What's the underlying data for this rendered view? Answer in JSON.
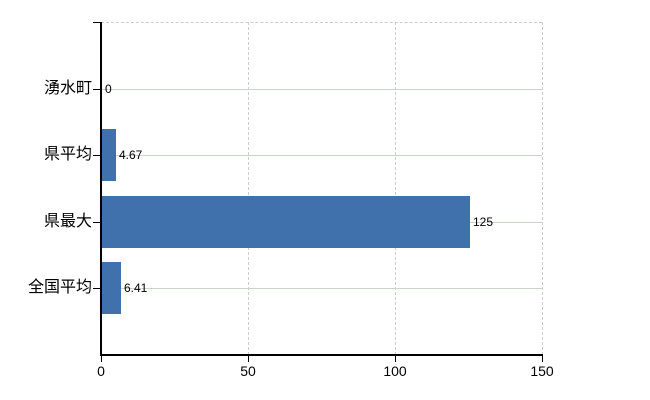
{
  "chart_data": {
    "type": "bar",
    "orientation": "horizontal",
    "title": "",
    "xlabel": "",
    "ylabel": "",
    "categories": [
      "湧水町",
      "県平均",
      "県最大",
      "全国平均"
    ],
    "values": [
      0,
      4.67,
      125,
      6.41
    ],
    "value_labels": [
      "0",
      "4.67",
      "125",
      "6.41"
    ],
    "xlim": [
      0,
      150
    ],
    "x_ticks": [
      0,
      50,
      100,
      150
    ],
    "x_tick_labels": [
      "0",
      "50",
      "100",
      "150"
    ],
    "grid": true,
    "legend": false,
    "colors": {
      "bar": "#4071ad",
      "axis": "#000000",
      "category_gridline": "#ccd3cb",
      "value_gridline": "#cccccc",
      "text": "#000000",
      "background": "#ffffff"
    }
  }
}
